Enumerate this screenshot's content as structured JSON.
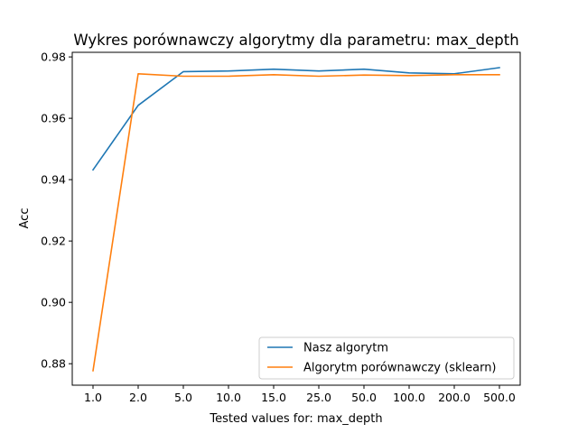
{
  "chart_data": {
    "type": "line",
    "title": "Wykres porównawczy algorytmy dla parametru: max_depth",
    "xlabel": "Tested values for: max_depth",
    "ylabel": "Acc",
    "categories": [
      "1.0",
      "2.0",
      "5.0",
      "10.0",
      "15.0",
      "25.0",
      "50.0",
      "100.0",
      "200.0",
      "500.0"
    ],
    "ylim": [
      0.873,
      0.9815
    ],
    "yticks": [
      0.88,
      0.9,
      0.92,
      0.94,
      0.96,
      0.98
    ],
    "ytick_labels": [
      "0.88",
      "0.90",
      "0.92",
      "0.94",
      "0.96",
      "0.98"
    ],
    "grid": false,
    "legend_position": "lower-right",
    "series": [
      {
        "name": "Nasz algorytm",
        "color": "#1f77b4",
        "values": [
          0.9432,
          0.9642,
          0.9752,
          0.9754,
          0.976,
          0.9754,
          0.976,
          0.9748,
          0.9745,
          0.9765
        ]
      },
      {
        "name": "Algorytm porównawczy (sklearn)",
        "color": "#ff7f0e",
        "values": [
          0.8777,
          0.9745,
          0.9737,
          0.9737,
          0.9742,
          0.9737,
          0.9741,
          0.9739,
          0.9742,
          0.9742
        ]
      }
    ]
  }
}
